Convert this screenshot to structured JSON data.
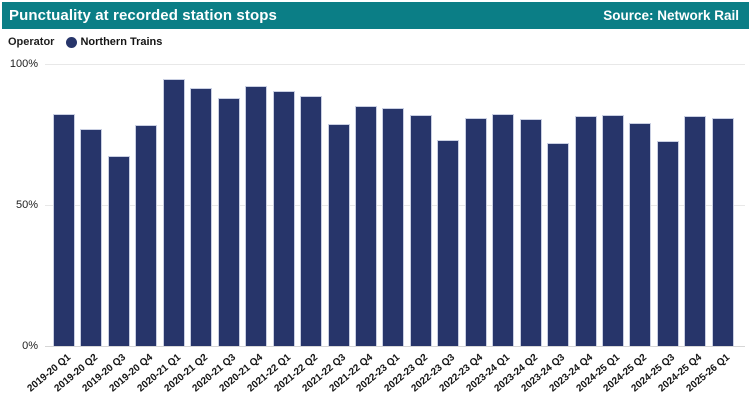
{
  "header": {
    "title": "Punctuality at recorded station stops",
    "source": "Source: Network Rail",
    "bg_color": "#0B7E86",
    "text_color": "#FFFFFF"
  },
  "legend": {
    "label": "Operator",
    "series_name": "Northern Trains",
    "marker_color": "#27356A"
  },
  "chart_data": {
    "type": "bar",
    "title": "Punctuality at recorded station stops",
    "xlabel": "",
    "ylabel": "",
    "ylim": [
      0,
      100
    ],
    "grid": true,
    "legend_position": "top-left",
    "bar_color": "#27356A",
    "categories": [
      "2019-20 Q1",
      "2019-20 Q2",
      "2019-20 Q3",
      "2019-20 Q4",
      "2020-21 Q1",
      "2020-21 Q2",
      "2020-21 Q3",
      "2020-21 Q4",
      "2021-22 Q1",
      "2021-22 Q2",
      "2021-22 Q3",
      "2021-22 Q4",
      "2022-23 Q1",
      "2022-23 Q2",
      "2022-23 Q3",
      "2022-23 Q4",
      "2023-24 Q1",
      "2023-24 Q2",
      "2023-24 Q3",
      "2023-24 Q4",
      "2024-25 Q1",
      "2024-25 Q2",
      "2024-25 Q3",
      "2024-25 Q4",
      "2025-26 Q1"
    ],
    "series": [
      {
        "name": "Northern Trains",
        "values": [
          82.4,
          76.8,
          67.4,
          78.4,
          94.6,
          91.5,
          87.8,
          92.3,
          90.6,
          88.5,
          78.9,
          85.0,
          84.5,
          81.8,
          73.2,
          80.7,
          82.3,
          80.6,
          71.9,
          81.5,
          81.8,
          79.1,
          72.6,
          81.5,
          81.0
        ]
      }
    ],
    "yticks": [
      {
        "label": "100%",
        "value": 100
      },
      {
        "label": "50%",
        "value": 50
      },
      {
        "label": "0%",
        "value": 0
      }
    ]
  }
}
